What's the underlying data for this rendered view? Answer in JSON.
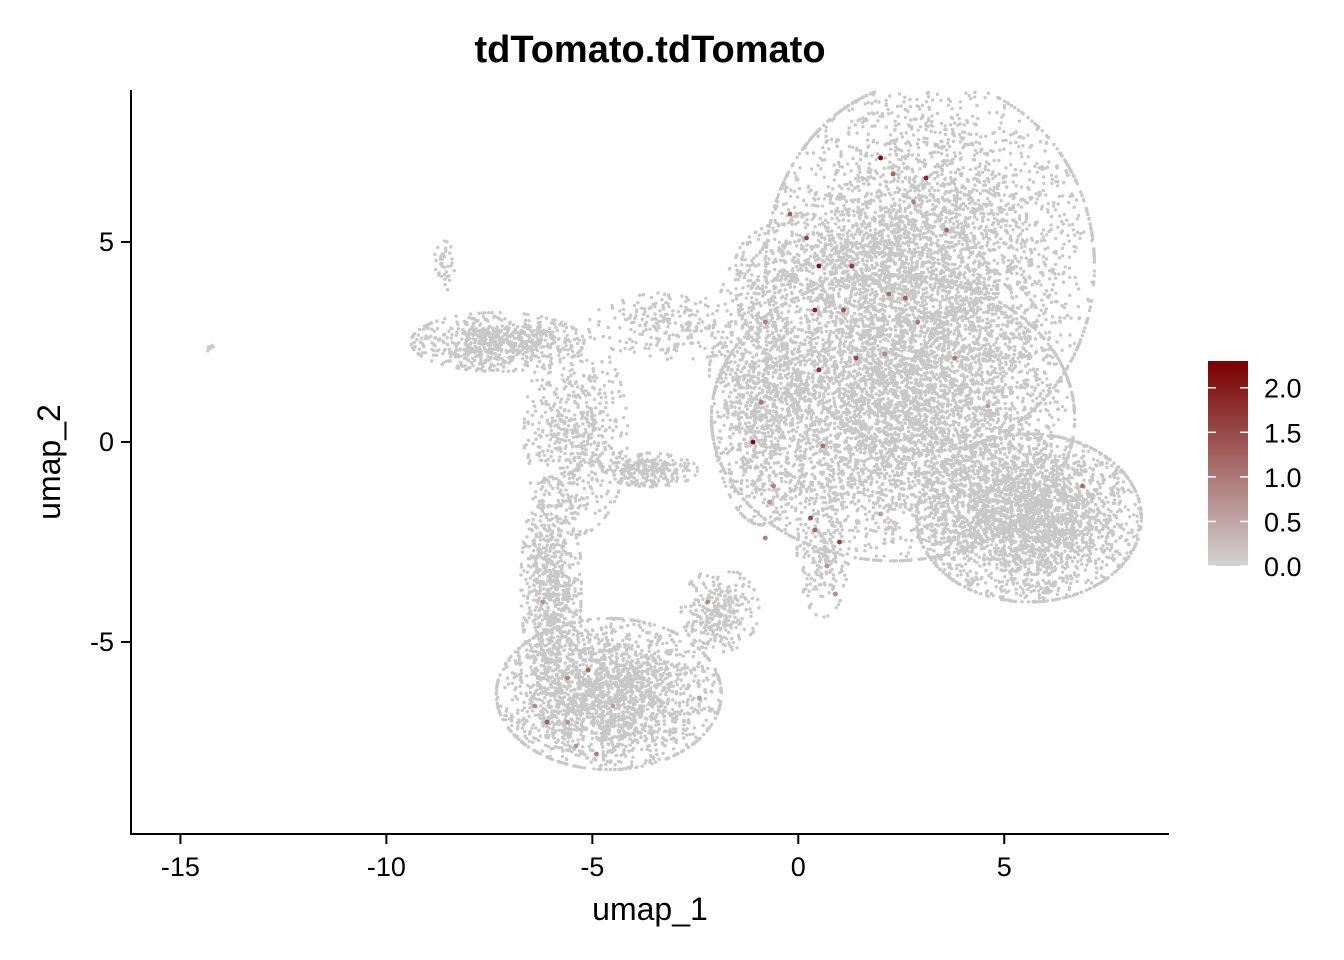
{
  "chart_data": {
    "type": "scatter",
    "title": "tdTomato.tdTomato",
    "xlabel": "umap_1",
    "ylabel": "umap_2",
    "xlim": [
      -16.2,
      9.0
    ],
    "ylim": [
      -9.8,
      8.8
    ],
    "x_ticks": [
      "-15",
      "-10",
      "-5",
      "0",
      "5"
    ],
    "y_ticks": [
      "-5",
      "0",
      "5"
    ],
    "grid": false,
    "legend": {
      "position": "right",
      "type": "colorbar",
      "range": [
        0.0,
        2.3
      ],
      "ticks": [
        "0.0",
        "0.5",
        "1.0",
        "1.5",
        "2.0"
      ],
      "low_color": "#d3d3d3",
      "high_color": "#7a0000"
    },
    "background_color": "#c8c8c8",
    "clusters": [
      {
        "x": 3.2,
        "y": 4.4,
        "sx": 1.9,
        "sy": 2.2,
        "n": 4200
      },
      {
        "x": 2.3,
        "y": 0.6,
        "sx": 2.1,
        "sy": 1.7,
        "n": 4200
      },
      {
        "x": 5.6,
        "y": -1.9,
        "sx": 1.3,
        "sy": 1.0,
        "n": 2800
      },
      {
        "x": -0.9,
        "y": 1.5,
        "sx": 0.6,
        "sy": 1.7,
        "n": 900
      },
      {
        "x": -4.6,
        "y": -6.3,
        "sx": 1.3,
        "sy": 0.9,
        "n": 2300
      },
      {
        "x": -6.0,
        "y": -3.6,
        "sx": 0.35,
        "sy": 1.3,
        "n": 700
      },
      {
        "x": -5.4,
        "y": 0.2,
        "sx": 0.6,
        "sy": 1.2,
        "n": 600
      },
      {
        "x": -7.3,
        "y": 2.5,
        "sx": 1.0,
        "sy": 0.35,
        "n": 700
      },
      {
        "x": -3.6,
        "y": -0.7,
        "sx": 0.55,
        "sy": 0.2,
        "n": 260
      },
      {
        "x": -1.9,
        "y": -4.2,
        "sx": 0.45,
        "sy": 0.5,
        "n": 300
      },
      {
        "x": 0.6,
        "y": -2.7,
        "sx": 0.3,
        "sy": 0.8,
        "n": 220
      },
      {
        "x": 1.0,
        "y": 4.5,
        "sx": 1.2,
        "sy": 0.6,
        "n": 500
      },
      {
        "x": -3.0,
        "y": 2.9,
        "sx": 1.0,
        "sy": 0.4,
        "n": 250
      },
      {
        "x": -8.6,
        "y": 4.4,
        "sx": 0.12,
        "sy": 0.3,
        "n": 40
      },
      {
        "x": -14.3,
        "y": 2.35,
        "sx": 0.05,
        "sy": 0.04,
        "n": 6
      }
    ],
    "expressing_cells": [
      {
        "x": 2.0,
        "y": 7.1,
        "v": 2.2
      },
      {
        "x": 3.1,
        "y": 6.6,
        "v": 1.9
      },
      {
        "x": 2.3,
        "y": 6.7,
        "v": 1.2
      },
      {
        "x": -0.2,
        "y": 5.7,
        "v": 1.3
      },
      {
        "x": 0.2,
        "y": 5.1,
        "v": 1.6
      },
      {
        "x": 0.5,
        "y": 4.4,
        "v": 2.1
      },
      {
        "x": 1.3,
        "y": 4.4,
        "v": 1.7
      },
      {
        "x": 1.1,
        "y": 3.3,
        "v": 1.4
      },
      {
        "x": 0.4,
        "y": 3.3,
        "v": 2.0
      },
      {
        "x": 2.2,
        "y": 3.7,
        "v": 1.1
      },
      {
        "x": 2.6,
        "y": 3.6,
        "v": 1.3
      },
      {
        "x": 2.9,
        "y": 3.0,
        "v": 1.0
      },
      {
        "x": 3.6,
        "y": 5.3,
        "v": 1.2
      },
      {
        "x": 2.8,
        "y": 6.0,
        "v": 0.9
      },
      {
        "x": 1.4,
        "y": 2.1,
        "v": 1.5
      },
      {
        "x": 0.5,
        "y": 1.8,
        "v": 1.8
      },
      {
        "x": 2.1,
        "y": 2.2,
        "v": 0.8
      },
      {
        "x": 3.8,
        "y": 2.1,
        "v": 1.0
      },
      {
        "x": -0.8,
        "y": 3.0,
        "v": 0.9
      },
      {
        "x": -1.1,
        "y": 0.0,
        "v": 2.2
      },
      {
        "x": -0.9,
        "y": 1.0,
        "v": 1.0
      },
      {
        "x": 0.6,
        "y": -0.1,
        "v": 1.1
      },
      {
        "x": -0.6,
        "y": -1.1,
        "v": 0.9
      },
      {
        "x": -0.7,
        "y": -1.5,
        "v": 0.7
      },
      {
        "x": 0.3,
        "y": -1.9,
        "v": 1.5
      },
      {
        "x": 0.4,
        "y": -2.2,
        "v": 1.2
      },
      {
        "x": 1.0,
        "y": -2.5,
        "v": 1.6
      },
      {
        "x": -0.8,
        "y": -2.4,
        "v": 0.9
      },
      {
        "x": 0.9,
        "y": -3.8,
        "v": 0.8
      },
      {
        "x": 0.7,
        "y": -3.1,
        "v": 0.7
      },
      {
        "x": 2.0,
        "y": -1.8,
        "v": 0.6
      },
      {
        "x": 6.9,
        "y": -1.1,
        "v": 1.1
      },
      {
        "x": 4.6,
        "y": 0.9,
        "v": 0.6
      },
      {
        "x": -2.2,
        "y": -4.0,
        "v": 0.8
      },
      {
        "x": -6.2,
        "y": -4.0,
        "v": 0.7
      },
      {
        "x": -5.1,
        "y": -5.7,
        "v": 1.2
      },
      {
        "x": -5.6,
        "y": -5.9,
        "v": 0.9
      },
      {
        "x": -6.4,
        "y": -6.6,
        "v": 0.8
      },
      {
        "x": -6.1,
        "y": -7.0,
        "v": 1.3
      },
      {
        "x": -5.6,
        "y": -7.0,
        "v": 0.7
      },
      {
        "x": -4.9,
        "y": -7.8,
        "v": 1.0
      },
      {
        "x": -5.4,
        "y": -7.6,
        "v": 0.7
      },
      {
        "x": -4.5,
        "y": -6.6,
        "v": 0.6
      },
      {
        "x": -2.4,
        "y": -6.4,
        "v": 0.6
      }
    ]
  }
}
